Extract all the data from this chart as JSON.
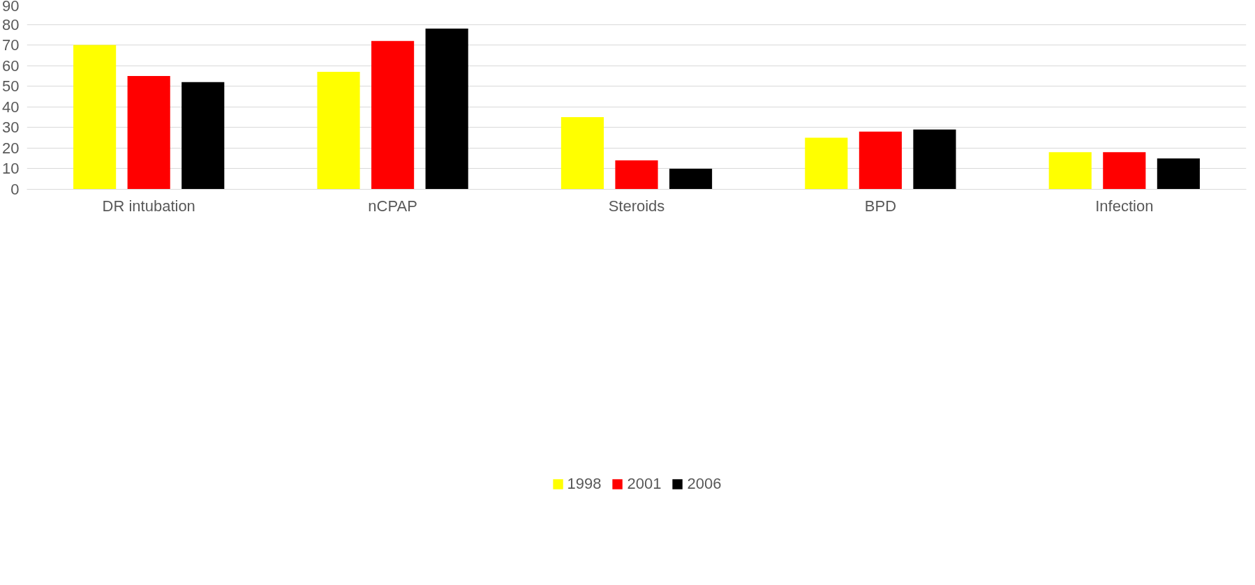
{
  "chart_data": {
    "type": "bar",
    "categories": [
      "DR intubation",
      "nCPAP",
      "Steroids",
      "BPD",
      "Infection"
    ],
    "series": [
      {
        "name": "1998",
        "color": "#ffff00",
        "values": [
          70,
          57,
          35,
          25,
          18
        ]
      },
      {
        "name": "2001",
        "color": "#ff0000",
        "values": [
          55,
          72,
          14,
          28,
          18
        ]
      },
      {
        "name": "2006",
        "color": "#000000",
        "values": [
          52,
          78,
          10,
          29,
          15
        ]
      }
    ],
    "ylim": [
      0,
      90
    ],
    "yticks": [
      0,
      10,
      20,
      30,
      40,
      50,
      60,
      70,
      80,
      90
    ],
    "grid": "y",
    "legend": "bottom"
  }
}
